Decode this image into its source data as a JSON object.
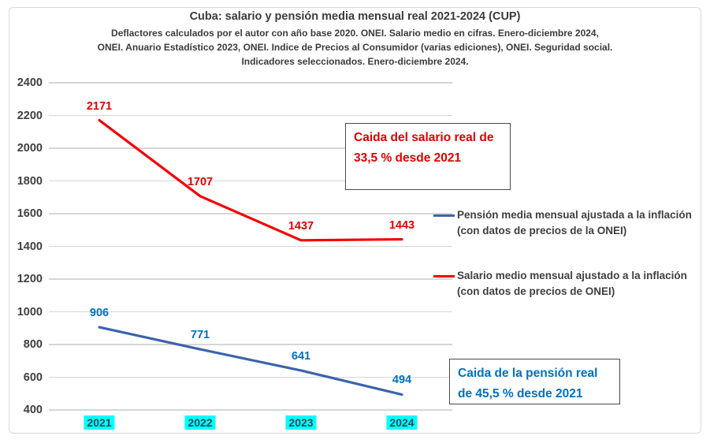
{
  "chart": {
    "title": "Cuba: salario y pensión media mensual real 2021-2024 (CUP)",
    "subtitle_lines": [
      "Deflactores calculados por el autor con año base 2020. ONEI. Salario medio en cifras. Enero-diciembre 2024,",
      "ONEI. Anuario Estadístico 2023, ONEI. Indice de Precios al Consumidor (varias ediciones), ONEI. Seguridad social.",
      "Indicadores seleccionados. Enero-diciembre 2024."
    ]
  },
  "chart_data": {
    "type": "line",
    "categories": [
      "2021",
      "2022",
      "2023",
      "2024"
    ],
    "series": [
      {
        "name": "Pensión media mensual ajustada a la inflación (con datos de precios de la ONEI)",
        "key": "pension",
        "values": [
          906,
          771,
          641,
          494
        ],
        "line_color": "#3a63ad",
        "label_color": "#0070c0"
      },
      {
        "name": "Salario medio mensual ajustado a la inflación (con datos de precios de ONEI)",
        "key": "salario",
        "values": [
          2171,
          1707,
          1437,
          1443
        ],
        "line_color": "#f40000",
        "label_color": "#e00000"
      }
    ],
    "ylim": [
      400,
      2400
    ],
    "ytick_step": 200,
    "grid": true,
    "legend_position": "right",
    "x_label_highlight_color": "#00ffff",
    "x_label_text_color": "#1b4a57"
  },
  "annotations": {
    "salary": {
      "text": "Caida del salario real de 33,5 % desde 2021",
      "color": "#e00000"
    },
    "pension": {
      "text": "Caida de la pensión real de 45,5 % desde 2021",
      "color": "#0070c0"
    }
  }
}
